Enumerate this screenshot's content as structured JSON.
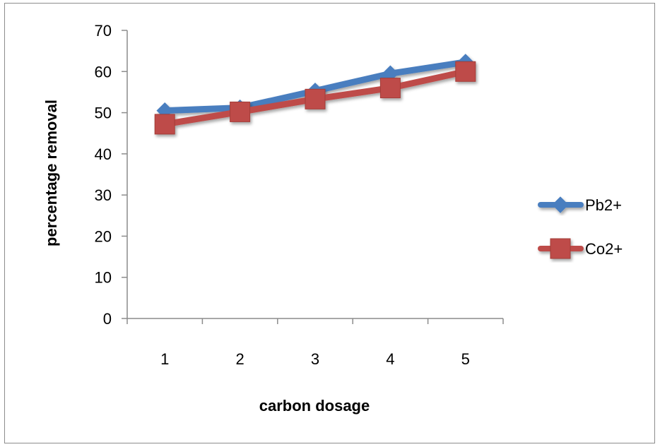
{
  "chart_data": {
    "type": "line",
    "categories": [
      "1",
      "2",
      "3",
      "4",
      "5"
    ],
    "series": [
      {
        "name": "Pb2+",
        "values": [
          50.5,
          51.2,
          55.3,
          59.5,
          62.3
        ],
        "color": "#4a7ebf",
        "marker": "diamond"
      },
      {
        "name": "Co2+",
        "values": [
          47.2,
          50.2,
          53.3,
          56.0,
          60.0
        ],
        "color": "#be4b48",
        "marker": "square"
      }
    ],
    "xlabel": "carbon dosage",
    "ylabel": "percentage removal",
    "ylim": [
      0,
      70
    ],
    "yticks": [
      "0",
      "10",
      "20",
      "30",
      "40",
      "50",
      "60",
      "70"
    ],
    "grid": false,
    "legend_position": "right"
  }
}
